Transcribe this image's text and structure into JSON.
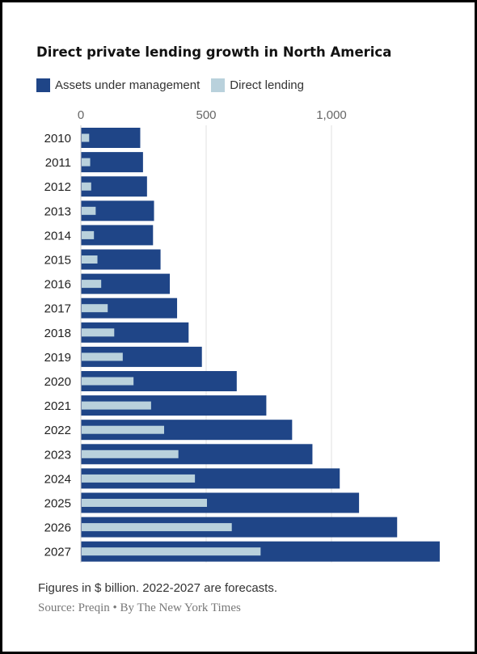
{
  "chart_data": {
    "type": "bar",
    "orientation": "horizontal",
    "title": "Direct private lending growth in North America",
    "categories": [
      "2010",
      "2011",
      "2012",
      "2013",
      "2014",
      "2015",
      "2016",
      "2017",
      "2018",
      "2019",
      "2020",
      "2021",
      "2022",
      "2023",
      "2024",
      "2025",
      "2026",
      "2027"
    ],
    "series": [
      {
        "name": "Assets under management",
        "color": "#1f4587",
        "values": [
          237,
          248,
          264,
          292,
          288,
          318,
          355,
          384,
          430,
          483,
          622,
          740,
          843,
          924,
          1033,
          1110,
          1262,
          1432
        ]
      },
      {
        "name": "Direct lending",
        "color": "#b9d1dc",
        "values": [
          30,
          34,
          38,
          56,
          49,
          63,
          78,
          104,
          130,
          164,
          207,
          277,
          329,
          386,
          452,
          500,
          599,
          714
        ]
      }
    ],
    "xlim": [
      0,
      1450
    ],
    "xticks": [
      "0",
      "500",
      "1,000"
    ],
    "xtick_values": [
      0,
      500,
      1000
    ],
    "grid": true,
    "legend": "top-left"
  },
  "footnote": "Figures in $ billion. 2022-2027 are forecasts.",
  "source": "Source: Preqin • By The New York Times"
}
